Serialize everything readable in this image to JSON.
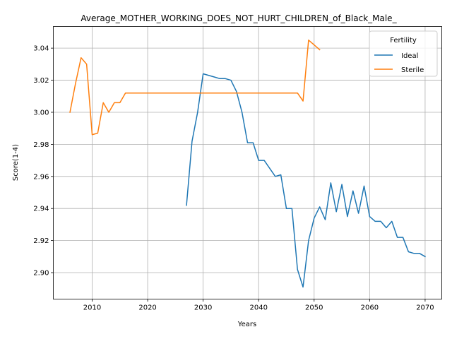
{
  "chart_data": {
    "type": "line",
    "title": "Average_MOTHER_WORKING_DOES_NOT_HURT_CHILDREN_of_Black_Male_",
    "xlabel": "Years",
    "ylabel": "Score(1-4)",
    "xlim": [
      2003,
      2073
    ],
    "ylim": [
      2.8835,
      3.0535
    ],
    "xticks": [
      2010,
      2020,
      2030,
      2040,
      2050,
      2060,
      2070
    ],
    "yticks": [
      2.9,
      2.92,
      2.94,
      2.96,
      2.98,
      3.0,
      3.02,
      3.04
    ],
    "xtick_labels": [
      "2010",
      "2020",
      "2030",
      "2040",
      "2050",
      "2060",
      "2070"
    ],
    "ytick_labels": [
      "2.90",
      "2.92",
      "2.94",
      "2.96",
      "2.98",
      "3.00",
      "3.02",
      "3.04"
    ],
    "grid": true,
    "legend": {
      "title": "Fertility",
      "position": "top-right"
    },
    "series": [
      {
        "name": "Ideal",
        "color": "#1f77b4",
        "x": [
          2027,
          2028,
          2029,
          2030,
          2031,
          2032,
          2033,
          2034,
          2035,
          2036,
          2037,
          2038,
          2039,
          2040,
          2041,
          2042,
          2043,
          2044,
          2045,
          2046,
          2047,
          2048,
          2049,
          2050,
          2051,
          2052,
          2053,
          2054,
          2055,
          2056,
          2057,
          2058,
          2059,
          2060,
          2061,
          2062,
          2063,
          2064,
          2065,
          2066,
          2067,
          2068,
          2069,
          2070
        ],
        "values": [
          2.942,
          2.982,
          3.0,
          3.024,
          3.023,
          3.022,
          3.021,
          3.021,
          3.02,
          3.013,
          3.0,
          2.981,
          2.981,
          2.97,
          2.97,
          2.965,
          2.96,
          2.961,
          2.94,
          2.94,
          2.902,
          2.891,
          2.92,
          2.934,
          2.941,
          2.933,
          2.956,
          2.938,
          2.955,
          2.935,
          2.951,
          2.937,
          2.954,
          2.935,
          2.932,
          2.932,
          2.928,
          2.932,
          2.922,
          2.922,
          2.913,
          2.912,
          2.912,
          2.91
        ]
      },
      {
        "name": "Sterile",
        "color": "#ff7f0e",
        "x": [
          2006,
          2007,
          2008,
          2009,
          2010,
          2011,
          2012,
          2013,
          2014,
          2015,
          2016,
          2017,
          2018,
          2019,
          2020,
          2021,
          2022,
          2023,
          2024,
          2025,
          2026,
          2027,
          2028,
          2029,
          2030,
          2031,
          2032,
          2033,
          2034,
          2035,
          2036,
          2037,
          2038,
          2039,
          2040,
          2041,
          2042,
          2043,
          2044,
          2045,
          2046,
          2047,
          2048,
          2049,
          2050,
          2051
        ],
        "values": [
          3.0,
          3.018,
          3.034,
          3.03,
          2.986,
          2.987,
          3.006,
          3.0,
          3.006,
          3.006,
          3.012,
          3.012,
          3.012,
          3.012,
          3.012,
          3.012,
          3.012,
          3.012,
          3.012,
          3.012,
          3.012,
          3.012,
          3.012,
          3.012,
          3.012,
          3.012,
          3.012,
          3.012,
          3.012,
          3.012,
          3.012,
          3.012,
          3.012,
          3.012,
          3.012,
          3.012,
          3.012,
          3.012,
          3.012,
          3.012,
          3.012,
          3.012,
          3.007,
          3.045,
          3.042,
          3.039
        ]
      }
    ]
  }
}
